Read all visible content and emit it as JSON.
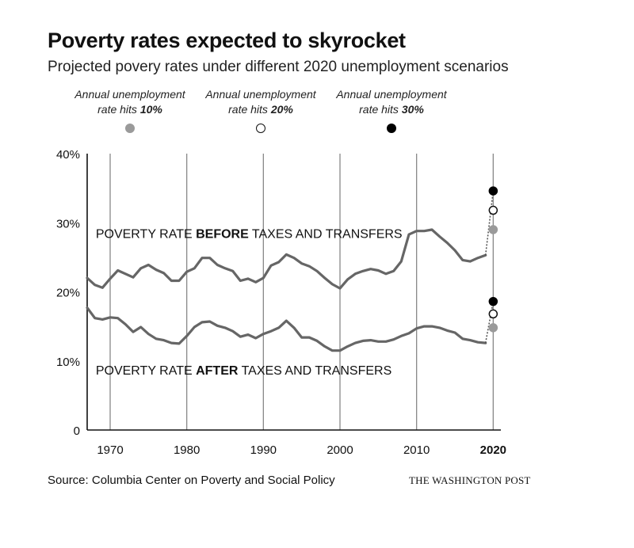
{
  "header": {
    "title": "Poverty rates expected to skyrocket",
    "subtitle": "Projected povery rates under different 2020 unemployment scenarios"
  },
  "legend": [
    {
      "line1": "Annual unemployment",
      "line2_prefix": "rate hits ",
      "line2_bold": "10%",
      "color": "#9a9a9a"
    },
    {
      "line1": "Annual unemployment",
      "line2_prefix": "rate hits ",
      "line2_bold": "20%",
      "color": "#ffffff"
    },
    {
      "line1": "Annual unemployment",
      "line2_prefix": "rate hits ",
      "line2_bold": "30%",
      "color": "#000000"
    }
  ],
  "footer": {
    "source": "Source: Columbia Center on Poverty and Social Policy",
    "credit": "THE WASHINGTON POST"
  },
  "chart_data": {
    "type": "line",
    "xlim": [
      1967,
      2021
    ],
    "ylim": [
      0,
      40
    ],
    "x_ticks": [
      1970,
      1980,
      1990,
      2000,
      2010,
      2020
    ],
    "x_tick_labels": [
      "1970",
      "1980",
      "1990",
      "2000",
      "2010",
      "2020"
    ],
    "x_tick_bold": [
      false,
      false,
      false,
      false,
      false,
      true
    ],
    "y_ticks": [
      0,
      10,
      20,
      30,
      40
    ],
    "y_tick_labels": [
      "0",
      "10%",
      "20%",
      "30%",
      "40%"
    ],
    "grid": "vertical",
    "line_color": "#666666",
    "series": [
      {
        "label_prefix": "POVERTY RATE ",
        "label_bold": "BEFORE",
        "label_suffix": " TAXES AND TRANSFERS",
        "label_anchor": [
          1967.5,
          27.8
        ],
        "x": [
          1967,
          1968,
          1969,
          1970,
          1971,
          1972,
          1973,
          1974,
          1975,
          1976,
          1977,
          1978,
          1979,
          1980,
          1981,
          1982,
          1983,
          1984,
          1985,
          1986,
          1987,
          1988,
          1989,
          1990,
          1991,
          1992,
          1993,
          1994,
          1995,
          1996,
          1997,
          1998,
          1999,
          2000,
          2001,
          2002,
          2003,
          2004,
          2005,
          2006,
          2007,
          2008,
          2009,
          2010,
          2011,
          2012,
          2013,
          2014,
          2015,
          2016,
          2017,
          2018,
          2019
        ],
        "values": [
          22.0,
          21.0,
          20.6,
          21.9,
          23.1,
          22.6,
          22.1,
          23.4,
          23.9,
          23.2,
          22.7,
          21.6,
          21.6,
          22.9,
          23.4,
          24.9,
          24.9,
          23.9,
          23.4,
          23.0,
          21.6,
          21.9,
          21.4,
          22.0,
          23.8,
          24.3,
          25.4,
          24.9,
          24.1,
          23.7,
          23.0,
          22.0,
          21.1,
          20.5,
          21.8,
          22.6,
          23.0,
          23.3,
          23.1,
          22.6,
          23.0,
          24.4,
          28.3,
          28.8,
          28.8,
          29.0,
          28.0,
          27.1,
          26.0,
          24.6,
          24.4,
          24.9,
          25.3
        ],
        "projections": [
          {
            "scenario": "10%",
            "x": 2020,
            "value": 29.0,
            "fill": "#9a9a9a",
            "stroke": "#9a9a9a"
          },
          {
            "scenario": "20%",
            "x": 2020,
            "value": 31.8,
            "fill": "#ffffff",
            "stroke": "#111111"
          },
          {
            "scenario": "30%",
            "x": 2020,
            "value": 34.6,
            "fill": "#000000",
            "stroke": "#000000"
          }
        ]
      },
      {
        "label_prefix": "POVERTY RATE ",
        "label_bold": "AFTER",
        "label_suffix": " TAXES AND TRANSFERS",
        "label_anchor": [
          1967.5,
          8.0
        ],
        "x": [
          1967,
          1968,
          1969,
          1970,
          1971,
          1972,
          1973,
          1974,
          1975,
          1976,
          1977,
          1978,
          1979,
          1980,
          1981,
          1982,
          1983,
          1984,
          1985,
          1986,
          1987,
          1988,
          1989,
          1990,
          1991,
          1992,
          1993,
          1994,
          1995,
          1996,
          1997,
          1998,
          1999,
          2000,
          2001,
          2002,
          2003,
          2004,
          2005,
          2006,
          2007,
          2008,
          2009,
          2010,
          2011,
          2012,
          2013,
          2014,
          2015,
          2016,
          2017,
          2018,
          2019
        ],
        "values": [
          17.7,
          16.2,
          16.0,
          16.3,
          16.2,
          15.3,
          14.2,
          14.9,
          13.9,
          13.2,
          13.0,
          12.6,
          12.5,
          13.6,
          14.9,
          15.6,
          15.7,
          15.1,
          14.8,
          14.3,
          13.5,
          13.8,
          13.3,
          13.9,
          14.3,
          14.8,
          15.8,
          14.8,
          13.4,
          13.4,
          12.9,
          12.1,
          11.5,
          11.5,
          12.1,
          12.6,
          12.9,
          13.0,
          12.8,
          12.8,
          13.1,
          13.6,
          14.0,
          14.7,
          15.0,
          15.0,
          14.8,
          14.4,
          14.1,
          13.2,
          13.0,
          12.7,
          12.6
        ],
        "projections": [
          {
            "scenario": "10%",
            "x": 2020,
            "value": 14.8,
            "fill": "#9a9a9a",
            "stroke": "#9a9a9a"
          },
          {
            "scenario": "20%",
            "x": 2020,
            "value": 16.8,
            "fill": "#ffffff",
            "stroke": "#111111"
          },
          {
            "scenario": "30%",
            "x": 2020,
            "value": 18.6,
            "fill": "#000000",
            "stroke": "#000000"
          }
        ]
      }
    ]
  }
}
